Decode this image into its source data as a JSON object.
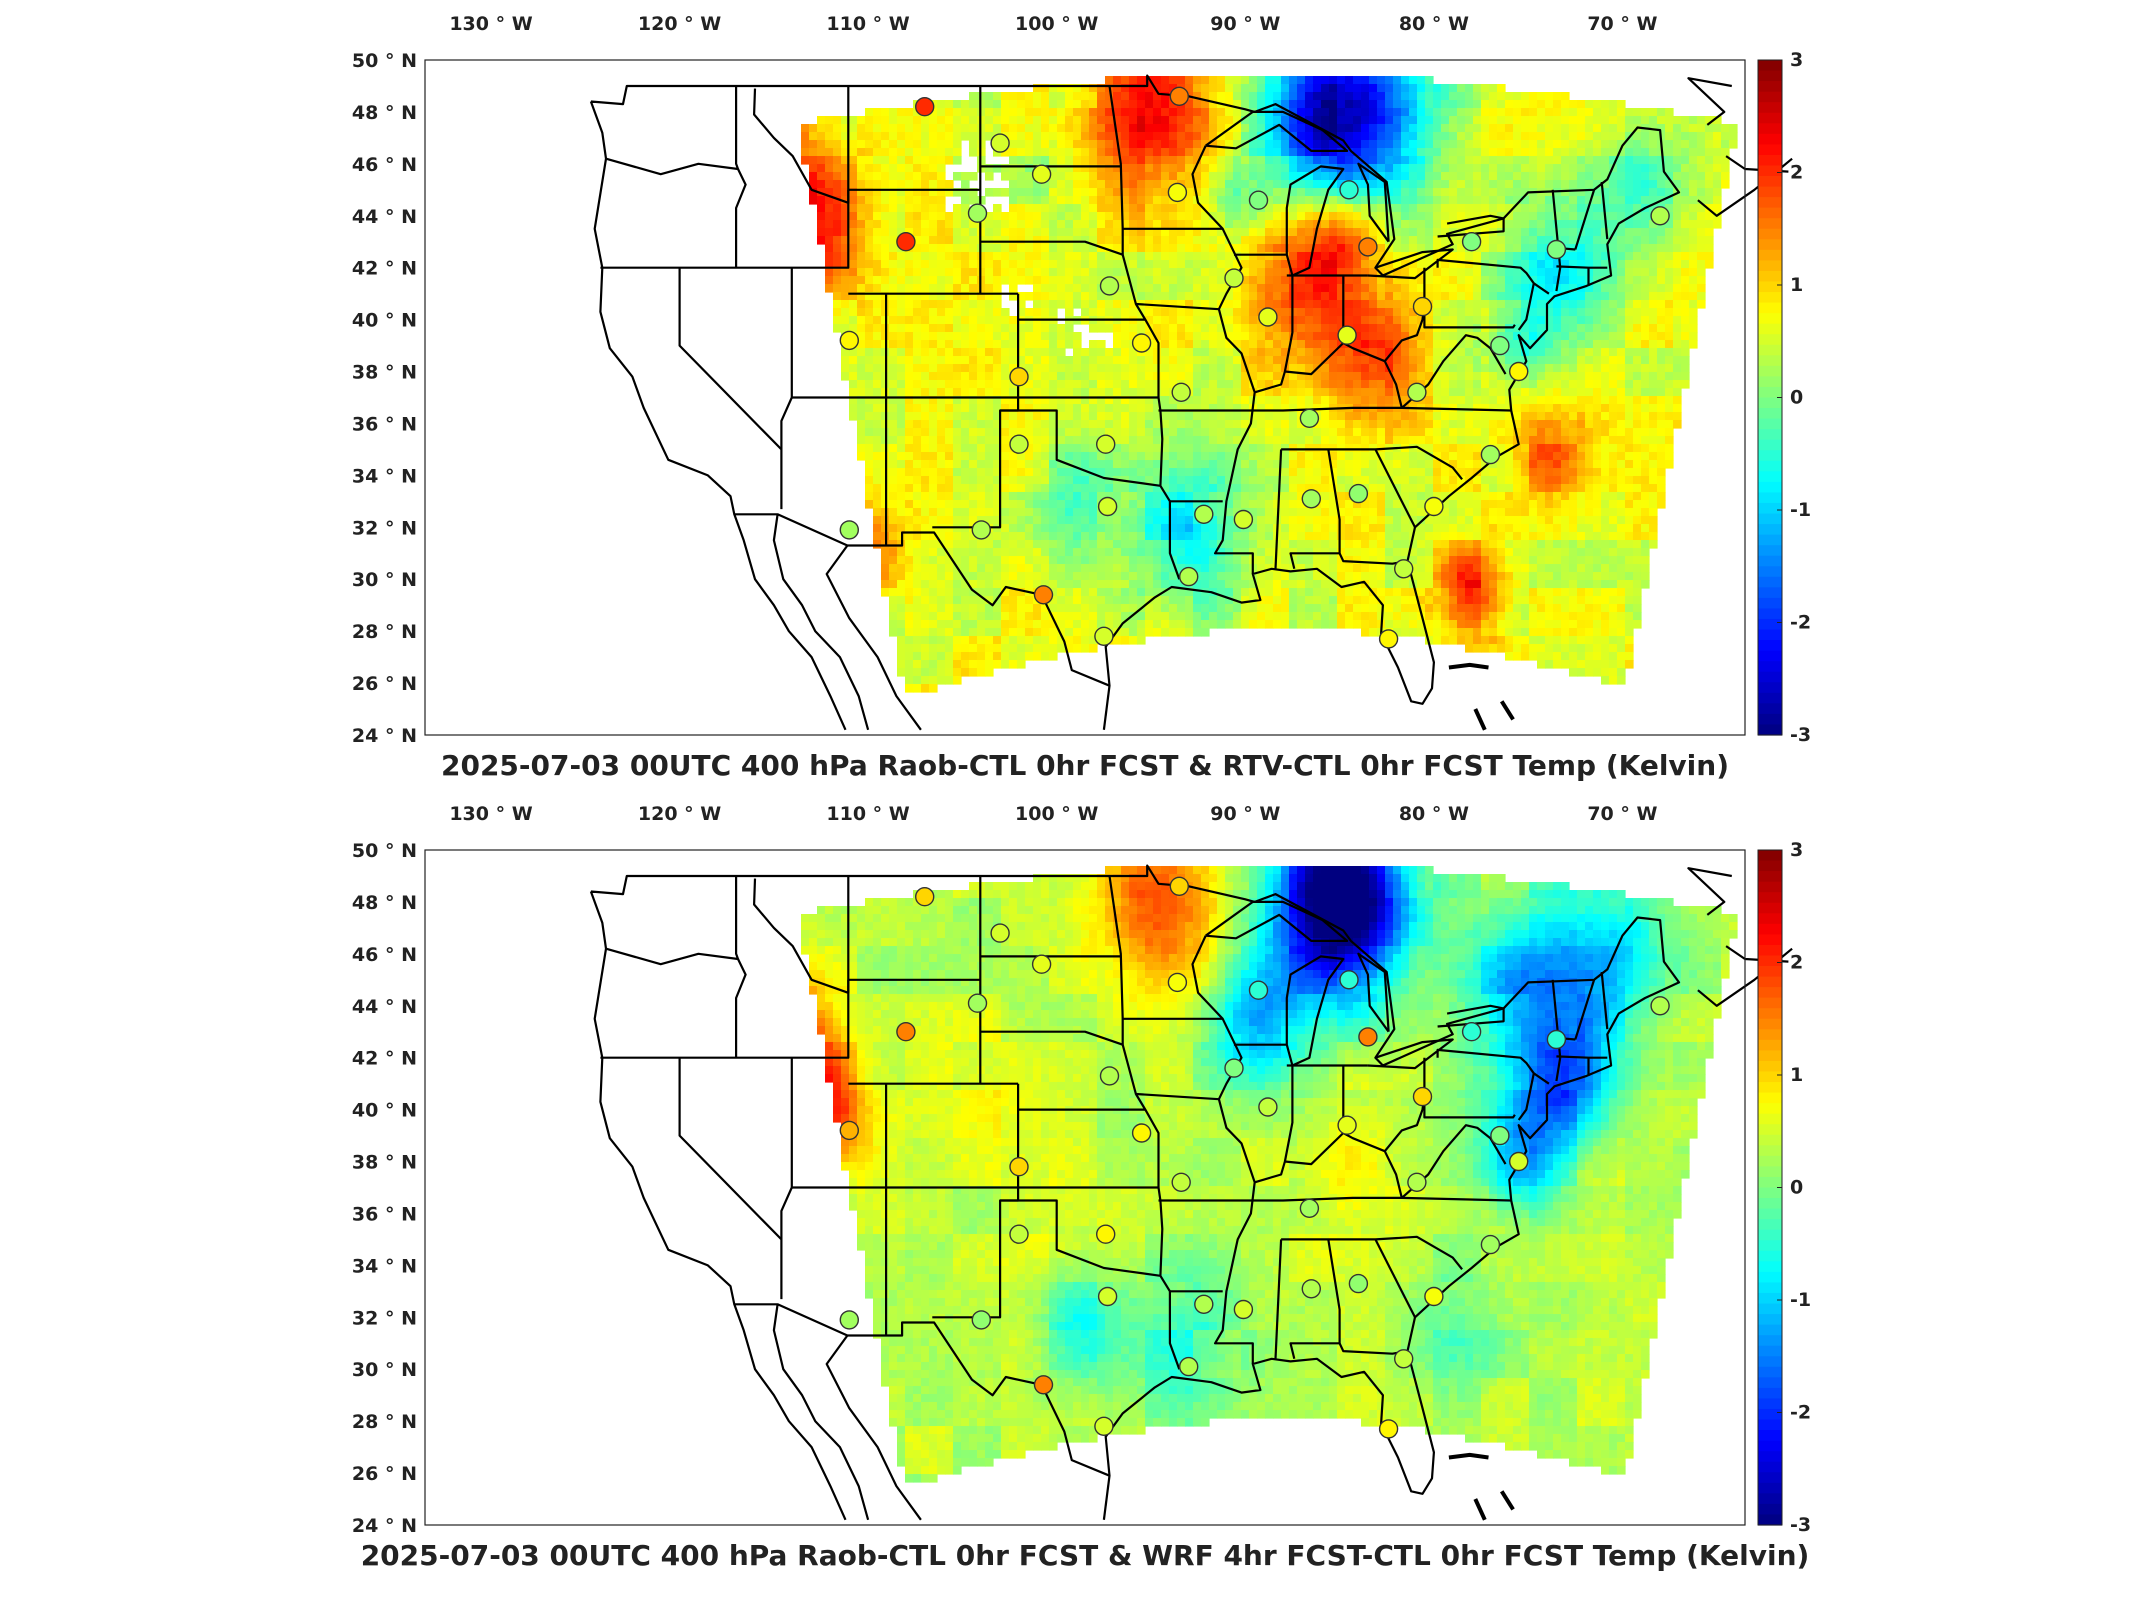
{
  "lon_labels": [
    "130",
    "120",
    "110",
    "100",
    "90",
    "80",
    "70"
  ],
  "lon_suffix": "W",
  "lat_labels": [
    "50",
    "48",
    "46",
    "44",
    "42",
    "40",
    "38",
    "36",
    "34",
    "32",
    "30",
    "28",
    "26",
    "24"
  ],
  "lat_suffix": "N",
  "degree_symbol": "°",
  "colorbar": {
    "ticks": [
      "3",
      "2",
      "1",
      "0",
      "-1",
      "-2",
      "-3"
    ],
    "min": -3,
    "max": 3
  },
  "colors": {
    "border": "#000000",
    "station_edge": "#333333"
  },
  "panels": [
    {
      "id": "top",
      "title": "2025-07-03 00UTC 400 hPa Raob-CTL 0hr FCST & RTV-CTL 0hr FCST Temp (Kelvin)",
      "stations": [
        {
          "lon": -107.0,
          "lat": 48.2,
          "value": 2.0
        },
        {
          "lon": -103.0,
          "lat": 46.8,
          "value": 0.5
        },
        {
          "lon": -100.8,
          "lat": 45.6,
          "value": 0.6
        },
        {
          "lon": -93.5,
          "lat": 48.6,
          "value": 1.5
        },
        {
          "lon": -93.6,
          "lat": 44.9,
          "value": 0.7
        },
        {
          "lon": -108.0,
          "lat": 43.0,
          "value": 2.0
        },
        {
          "lon": -104.2,
          "lat": 44.1,
          "value": 0.2
        },
        {
          "lon": -97.2,
          "lat": 41.3,
          "value": 0.3
        },
        {
          "lon": -89.3,
          "lat": 44.6,
          "value": 0.0
        },
        {
          "lon": -84.5,
          "lat": 45.0,
          "value": -0.5
        },
        {
          "lon": -83.5,
          "lat": 42.8,
          "value": 1.5
        },
        {
          "lon": -90.6,
          "lat": 41.6,
          "value": 0.4
        },
        {
          "lon": -88.8,
          "lat": 40.1,
          "value": 0.6
        },
        {
          "lon": -84.6,
          "lat": 39.4,
          "value": 0.6
        },
        {
          "lon": -80.6,
          "lat": 40.5,
          "value": 1.0
        },
        {
          "lon": -76.5,
          "lat": 39.0,
          "value": 0.0
        },
        {
          "lon": -75.5,
          "lat": 38.0,
          "value": 0.8
        },
        {
          "lon": -78.0,
          "lat": 43.0,
          "value": 0.0
        },
        {
          "lon": -73.5,
          "lat": 42.7,
          "value": 0.0
        },
        {
          "lon": -68.0,
          "lat": 44.0,
          "value": 0.3
        },
        {
          "lon": -111.0,
          "lat": 39.2,
          "value": 0.8
        },
        {
          "lon": -102.0,
          "lat": 37.8,
          "value": 1.0
        },
        {
          "lon": -95.5,
          "lat": 39.1,
          "value": 0.8
        },
        {
          "lon": -93.4,
          "lat": 37.2,
          "value": 0.4
        },
        {
          "lon": -86.6,
          "lat": 36.2,
          "value": 0.2
        },
        {
          "lon": -80.9,
          "lat": 37.2,
          "value": 0.3
        },
        {
          "lon": -102.0,
          "lat": 35.2,
          "value": 0.4
        },
        {
          "lon": -97.4,
          "lat": 35.2,
          "value": 0.5
        },
        {
          "lon": -77.0,
          "lat": 34.8,
          "value": 0.2
        },
        {
          "lon": -111.0,
          "lat": 31.9,
          "value": 0.2
        },
        {
          "lon": -104.0,
          "lat": 31.9,
          "value": 0.3
        },
        {
          "lon": -97.3,
          "lat": 32.8,
          "value": 0.5
        },
        {
          "lon": -92.2,
          "lat": 32.5,
          "value": 0.3
        },
        {
          "lon": -90.1,
          "lat": 32.3,
          "value": 0.5
        },
        {
          "lon": -86.5,
          "lat": 33.1,
          "value": 0.2
        },
        {
          "lon": -84.0,
          "lat": 33.3,
          "value": 0.1
        },
        {
          "lon": -80.0,
          "lat": 32.8,
          "value": 0.7
        },
        {
          "lon": -93.0,
          "lat": 30.1,
          "value": 0.3
        },
        {
          "lon": -81.6,
          "lat": 30.4,
          "value": 0.4
        },
        {
          "lon": -100.7,
          "lat": 29.4,
          "value": 1.5
        },
        {
          "lon": -97.5,
          "lat": 27.8,
          "value": 0.5
        },
        {
          "lon": -82.4,
          "lat": 27.7,
          "value": 0.8
        }
      ]
    },
    {
      "id": "bottom",
      "title": "2025-07-03 00UTC 400 hPa Raob-CTL 0hr FCST & WRF 4hr FCST-CTL 0hr FCST Temp (Kelvin)",
      "stations": [
        {
          "lon": -107.0,
          "lat": 48.2,
          "value": 1.0
        },
        {
          "lon": -103.0,
          "lat": 46.8,
          "value": 0.5
        },
        {
          "lon": -100.8,
          "lat": 45.6,
          "value": 0.6
        },
        {
          "lon": -93.5,
          "lat": 48.6,
          "value": 1.0
        },
        {
          "lon": -93.6,
          "lat": 44.9,
          "value": 0.7
        },
        {
          "lon": -108.0,
          "lat": 43.0,
          "value": 1.5
        },
        {
          "lon": -104.2,
          "lat": 44.1,
          "value": 0.2
        },
        {
          "lon": -97.2,
          "lat": 41.3,
          "value": 0.3
        },
        {
          "lon": -89.3,
          "lat": 44.6,
          "value": -0.5
        },
        {
          "lon": -84.5,
          "lat": 45.0,
          "value": -0.5
        },
        {
          "lon": -83.5,
          "lat": 42.8,
          "value": 1.5
        },
        {
          "lon": -90.6,
          "lat": 41.6,
          "value": 0.0
        },
        {
          "lon": -88.8,
          "lat": 40.1,
          "value": 0.4
        },
        {
          "lon": -84.6,
          "lat": 39.4,
          "value": 0.6
        },
        {
          "lon": -80.6,
          "lat": 40.5,
          "value": 1.0
        },
        {
          "lon": -76.5,
          "lat": 39.0,
          "value": 0.0
        },
        {
          "lon": -75.5,
          "lat": 38.0,
          "value": 0.5
        },
        {
          "lon": -78.0,
          "lat": 43.0,
          "value": -0.5
        },
        {
          "lon": -73.5,
          "lat": 42.7,
          "value": -0.5
        },
        {
          "lon": -68.0,
          "lat": 44.0,
          "value": 0.3
        },
        {
          "lon": -111.0,
          "lat": 39.2,
          "value": 1.2
        },
        {
          "lon": -102.0,
          "lat": 37.8,
          "value": 1.0
        },
        {
          "lon": -95.5,
          "lat": 39.1,
          "value": 0.8
        },
        {
          "lon": -93.4,
          "lat": 37.2,
          "value": 0.4
        },
        {
          "lon": -86.6,
          "lat": 36.2,
          "value": 0.2
        },
        {
          "lon": -80.9,
          "lat": 37.2,
          "value": 0.3
        },
        {
          "lon": -102.0,
          "lat": 35.2,
          "value": 0.4
        },
        {
          "lon": -97.4,
          "lat": 35.2,
          "value": 0.8
        },
        {
          "lon": -77.0,
          "lat": 34.8,
          "value": 0.2
        },
        {
          "lon": -111.0,
          "lat": 31.9,
          "value": 0.2
        },
        {
          "lon": -104.0,
          "lat": 31.9,
          "value": 0.1
        },
        {
          "lon": -97.3,
          "lat": 32.8,
          "value": 0.5
        },
        {
          "lon": -92.2,
          "lat": 32.5,
          "value": 0.3
        },
        {
          "lon": -90.1,
          "lat": 32.3,
          "value": 0.5
        },
        {
          "lon": -86.5,
          "lat": 33.1,
          "value": 0.3
        },
        {
          "lon": -84.0,
          "lat": 33.3,
          "value": 0.1
        },
        {
          "lon": -80.0,
          "lat": 32.8,
          "value": 0.7
        },
        {
          "lon": -93.0,
          "lat": 30.1,
          "value": 0.3
        },
        {
          "lon": -81.6,
          "lat": 30.4,
          "value": 0.4
        },
        {
          "lon": -100.7,
          "lat": 29.4,
          "value": 1.5
        },
        {
          "lon": -97.5,
          "lat": 27.8,
          "value": 0.5
        },
        {
          "lon": -82.4,
          "lat": 27.7,
          "value": 0.8
        }
      ]
    }
  ]
}
